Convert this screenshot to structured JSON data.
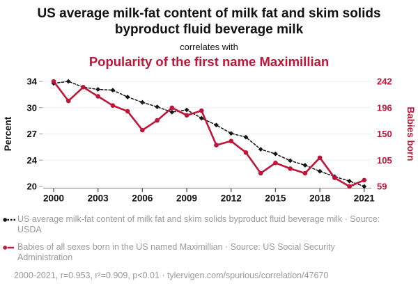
{
  "header": {
    "title": "US average milk-fat content of milk fat and skim solids byproduct fluid beverage milk",
    "connector": "correlates with",
    "subtitle": "Popularity of the first name Maximillian"
  },
  "colors": {
    "accent": "#be1538",
    "series_black": "#141414",
    "muted_text": "#9b9b9b",
    "gridline": "#f0f0f0",
    "axis_line": "#9b9b9b",
    "tick_mark": "#555555",
    "tick_label": "#111111"
  },
  "chart_data": {
    "type": "line",
    "x": [
      2000,
      2001,
      2002,
      2003,
      2004,
      2005,
      2006,
      2007,
      2008,
      2009,
      2010,
      2011,
      2012,
      2013,
      2014,
      2015,
      2016,
      2017,
      2018,
      2019,
      2020,
      2021
    ],
    "x_ticks": [
      2000,
      2003,
      2006,
      2009,
      2012,
      2015,
      2018,
      2021
    ],
    "left_axis": {
      "label": "Percent",
      "min": 20.1,
      "max": 33.96,
      "tick_labels": [
        "34",
        "30",
        "27",
        "24",
        "20"
      ]
    },
    "right_axis": {
      "label": "Babies born",
      "min": 59,
      "max": 242,
      "tick_labels": [
        "242",
        "196",
        "150",
        "105",
        "59"
      ]
    },
    "series": [
      {
        "name": "US average milk-fat content of milk fat and skim solids byproduct fluid beverage milk",
        "source": "USDA",
        "axis": "left",
        "marker": "diamond",
        "line_style": "dashed",
        "color": "#141414",
        "values": [
          33.7,
          33.96,
          33.2,
          32.9,
          32.8,
          31.9,
          31.2,
          30.6,
          29.9,
          30.2,
          29.1,
          28.2,
          27.1,
          26.6,
          25.0,
          24.4,
          23.5,
          22.9,
          22.1,
          21.4,
          20.8,
          20.1
        ]
      },
      {
        "name": "Babies of all sexes born in the US named Maximillian",
        "source": "US Social Security Administration",
        "axis": "right",
        "marker": "circle",
        "line_style": "solid",
        "color": "#be1538",
        "values": [
          242,
          208,
          232,
          216,
          200,
          190,
          157,
          174,
          196,
          183,
          191,
          131,
          138,
          118,
          82,
          100,
          90,
          82,
          109,
          74,
          59,
          70
        ]
      }
    ]
  },
  "legend": [
    {
      "text": "US average milk-fat content of milk fat and skim solids byproduct fluid beverage milk · Source: USDA"
    },
    {
      "text": "Babies of all sexes born in the US named Maximillian · Source: US Social Security Administration"
    }
  ],
  "footer": {
    "stats": "2000-2021, r=0.953, r²=0.909, p<0.01 · tylervigen.com/spurious/correlation/47670"
  }
}
